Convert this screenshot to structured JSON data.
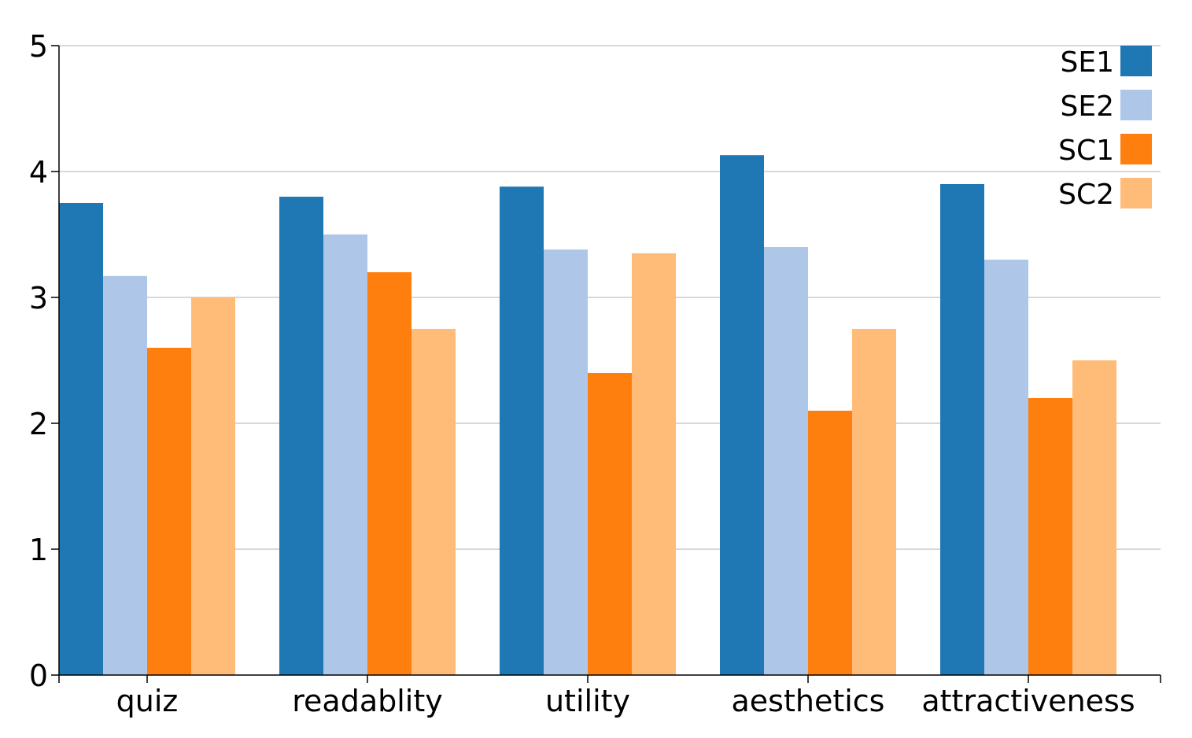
{
  "chart_data": {
    "type": "bar",
    "categories": [
      "quiz",
      "readablity",
      "utility",
      "aesthetics",
      "attractiveness"
    ],
    "series": [
      {
        "name": "SE1",
        "color": "#1f77b4",
        "values": [
          3.75,
          3.8,
          3.88,
          4.13,
          3.9
        ]
      },
      {
        "name": "SE2",
        "color": "#aec7e8",
        "values": [
          3.17,
          3.5,
          3.38,
          3.4,
          3.3
        ]
      },
      {
        "name": "SC1",
        "color": "#ff7f0e",
        "values": [
          2.6,
          3.2,
          2.4,
          2.1,
          2.2
        ]
      },
      {
        "name": "SC2",
        "color": "#ffbb78",
        "values": [
          3.0,
          2.75,
          3.35,
          2.75,
          2.5
        ]
      }
    ],
    "ylim": [
      0,
      5
    ],
    "yticks": [
      0,
      1,
      2,
      3,
      4,
      5
    ],
    "grid": true,
    "legend_position": "top-right",
    "title": "",
    "xlabel": "",
    "ylabel": ""
  }
}
